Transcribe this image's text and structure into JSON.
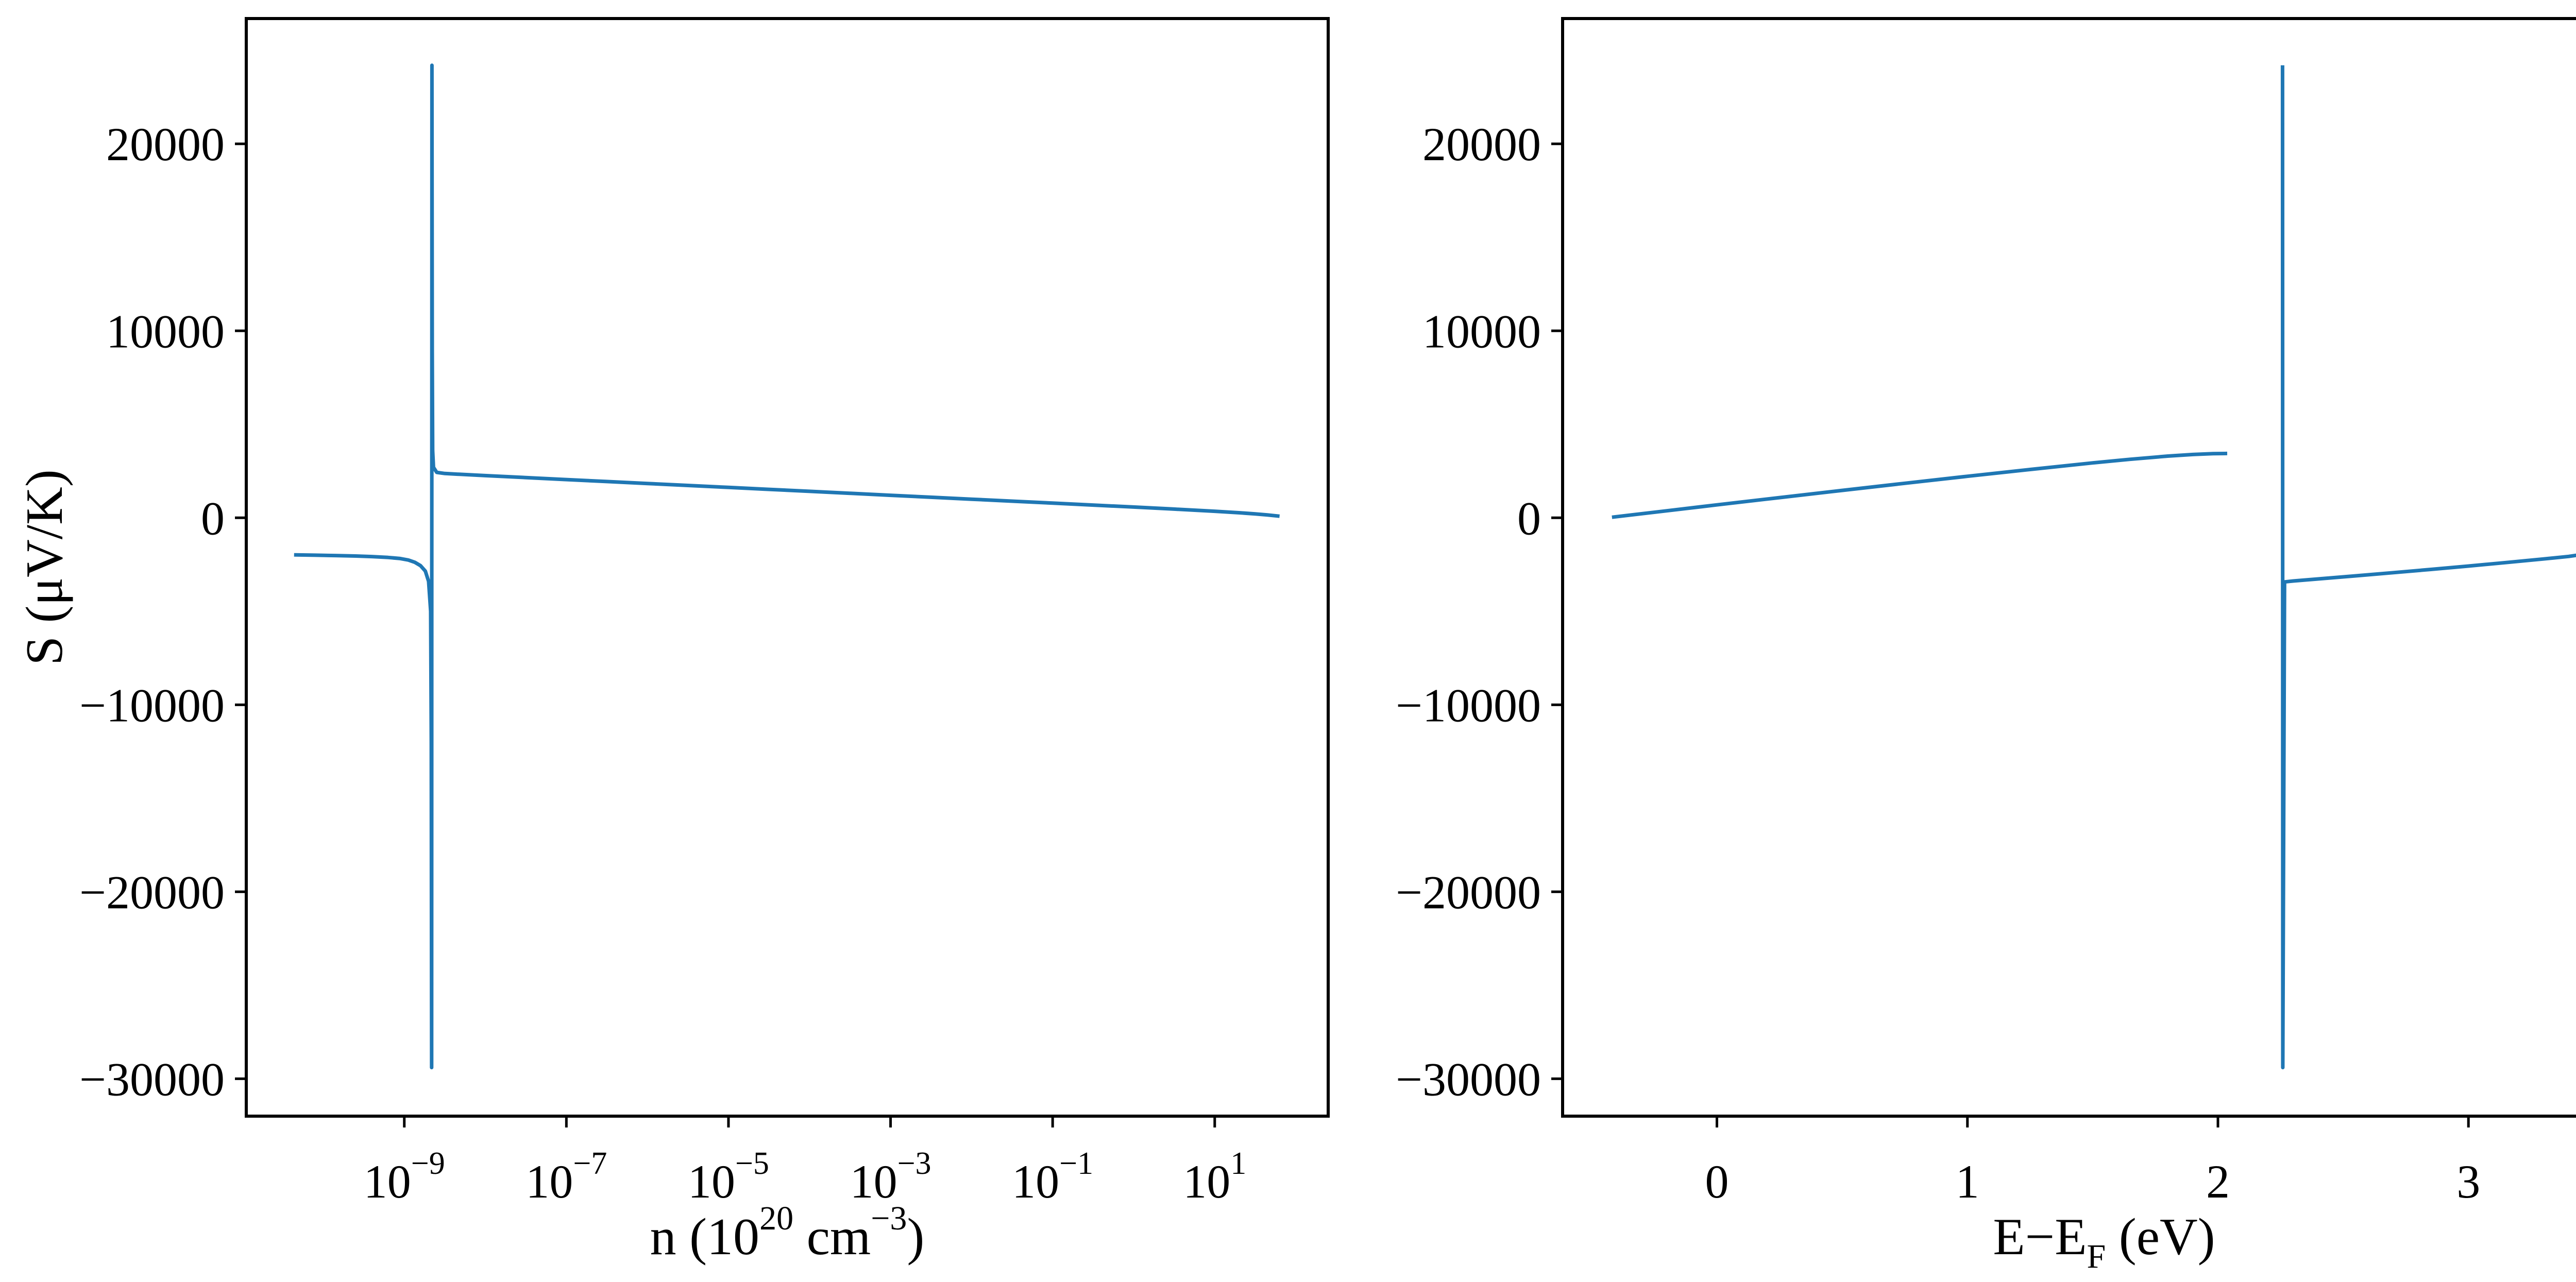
{
  "figure": {
    "background": "#ffffff",
    "axis_color": "#000000",
    "line_color": "#1f77b4"
  },
  "chart_data": [
    {
      "id": "seebeck-vs-carrier-concentration",
      "type": "line",
      "xscale": "log",
      "xlabel_parts": [
        {
          "t": "n (10"
        },
        {
          "sup": "20"
        },
        {
          "t": " cm"
        },
        {
          "sup": "−3"
        },
        {
          "t": ")"
        }
      ],
      "ylabel": "S (μV/K)",
      "xlim_log10": [
        -10.95,
        2.4
      ],
      "ylim": [
        -32000,
        26700
      ],
      "grid": false,
      "legend": null,
      "xticks": [
        {
          "base": "10",
          "sup": "−9",
          "log10": -9
        },
        {
          "base": "10",
          "sup": "−7",
          "log10": -7
        },
        {
          "base": "10",
          "sup": "−5",
          "log10": -5
        },
        {
          "base": "10",
          "sup": "−3",
          "log10": -3
        },
        {
          "base": "10",
          "sup": "−1",
          "log10": -1
        },
        {
          "base": "10",
          "sup": "1",
          "log10": 1
        }
      ],
      "yticks": [
        {
          "v": 20000,
          "label": "20000"
        },
        {
          "v": 10000,
          "label": "10000"
        },
        {
          "v": 0,
          "label": "0"
        },
        {
          "v": -10000,
          "label": "−10000"
        },
        {
          "v": -20000,
          "label": "−20000"
        },
        {
          "v": -30000,
          "label": "−30000"
        }
      ],
      "series": [
        {
          "name": "S vs n",
          "color": "#1f77b4",
          "x_as": "log10",
          "points": [
            [
              -10.36,
              -1980
            ],
            [
              -10.1,
              -2000
            ],
            [
              -9.85,
              -2020
            ],
            [
              -9.6,
              -2045
            ],
            [
              -9.4,
              -2075
            ],
            [
              -9.2,
              -2120
            ],
            [
              -9.05,
              -2180
            ],
            [
              -8.95,
              -2260
            ],
            [
              -8.87,
              -2380
            ],
            [
              -8.8,
              -2560
            ],
            [
              -8.74,
              -2850
            ],
            [
              -8.7,
              -3400
            ],
            [
              -8.675,
              -5000
            ],
            [
              -8.667,
              -12000
            ],
            [
              -8.663,
              -29400
            ],
            [
              -8.659,
              24200
            ],
            [
              -8.655,
              9000
            ],
            [
              -8.65,
              3600
            ],
            [
              -8.64,
              2700
            ],
            [
              -8.6,
              2430
            ],
            [
              -8.5,
              2370
            ],
            [
              -8.2,
              2300
            ],
            [
              -8.0,
              2255
            ],
            [
              -7.5,
              2150
            ],
            [
              -7.0,
              2045
            ],
            [
              -6.5,
              1940
            ],
            [
              -6.0,
              1835
            ],
            [
              -5.5,
              1730
            ],
            [
              -5.0,
              1625
            ],
            [
              -4.5,
              1520
            ],
            [
              -4.0,
              1415
            ],
            [
              -3.5,
              1310
            ],
            [
              -3.0,
              1205
            ],
            [
              -2.5,
              1100
            ],
            [
              -2.0,
              995
            ],
            [
              -1.5,
              890
            ],
            [
              -1.0,
              785
            ],
            [
              -0.5,
              680
            ],
            [
              0.0,
              575
            ],
            [
              0.5,
              465
            ],
            [
              1.0,
              350
            ],
            [
              1.3,
              270
            ],
            [
              1.5,
              210
            ],
            [
              1.65,
              155
            ],
            [
              1.8,
              85
            ]
          ]
        }
      ]
    },
    {
      "id": "seebeck-vs-energy",
      "type": "line",
      "xscale": "linear",
      "xlabel_parts": [
        {
          "t": "E−E"
        },
        {
          "sub": "F"
        },
        {
          "t": " (eV)"
        }
      ],
      "ylabel": "S (μV/K)",
      "xlim": [
        -0.616,
        3.707
      ],
      "ylim": [
        -32000,
        26700
      ],
      "grid": false,
      "legend": null,
      "xticks": [
        {
          "v": 0,
          "label": "0"
        },
        {
          "v": 1,
          "label": "1"
        },
        {
          "v": 2,
          "label": "2"
        },
        {
          "v": 3,
          "label": "3"
        }
      ],
      "yticks": [
        {
          "v": 20000,
          "label": "20000"
        },
        {
          "v": 10000,
          "label": "10000"
        },
        {
          "v": 0,
          "label": "0"
        },
        {
          "v": -10000,
          "label": "−10000"
        },
        {
          "v": -20000,
          "label": "−20000"
        },
        {
          "v": -30000,
          "label": "−30000"
        }
      ],
      "series": [
        {
          "name": "S vs E segment 1",
          "color": "#1f77b4",
          "x_as": "linear",
          "points": [
            [
              -0.419,
              30
            ],
            [
              -0.2,
              375
            ],
            [
              0.0,
              690
            ],
            [
              0.25,
              1080
            ],
            [
              0.5,
              1465
            ],
            [
              0.75,
              1845
            ],
            [
              1.0,
              2220
            ],
            [
              1.25,
              2585
            ],
            [
              1.5,
              2935
            ],
            [
              1.65,
              3130
            ],
            [
              1.8,
              3300
            ],
            [
              1.9,
              3385
            ],
            [
              1.98,
              3430
            ],
            [
              2.037,
              3440
            ]
          ]
        },
        {
          "name": "S vs E segment 2",
          "color": "#1f77b4",
          "x_as": "linear",
          "points": [
            [
              2.258,
              24200
            ],
            [
              2.259,
              -29400
            ],
            [
              2.266,
              -3430
            ],
            [
              2.3,
              -3380
            ],
            [
              2.4,
              -3270
            ],
            [
              2.55,
              -3105
            ],
            [
              2.7,
              -2935
            ],
            [
              2.85,
              -2760
            ],
            [
              3.0,
              -2580
            ],
            [
              3.15,
              -2395
            ],
            [
              3.3,
              -2200
            ],
            [
              3.4,
              -2065
            ],
            [
              3.51,
              -1850
            ]
          ]
        }
      ]
    }
  ]
}
